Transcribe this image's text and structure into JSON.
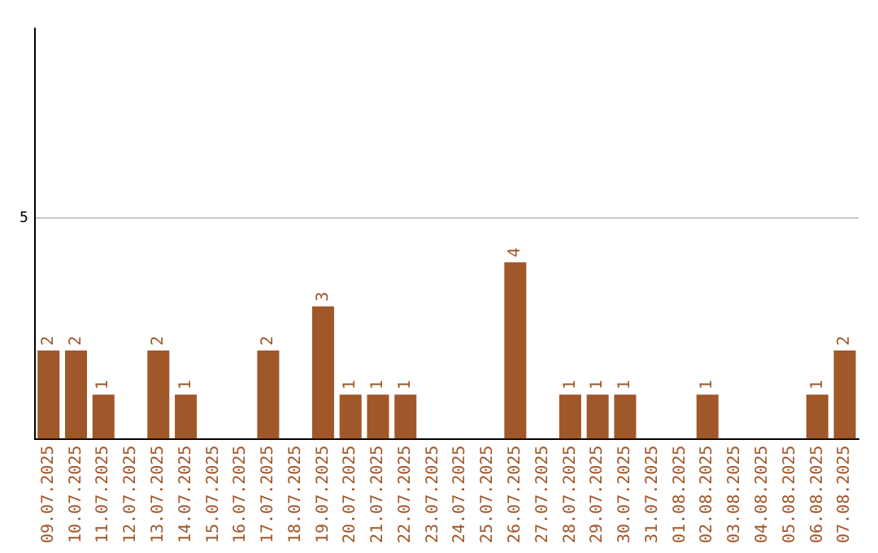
{
  "chart_data": {
    "type": "bar",
    "categories": [
      "09.07.2025",
      "10.07.2025",
      "11.07.2025",
      "12.07.2025",
      "13.07.2025",
      "14.07.2025",
      "15.07.2025",
      "16.07.2025",
      "17.07.2025",
      "18.07.2025",
      "19.07.2025",
      "20.07.2025",
      "21.07.2025",
      "22.07.2025",
      "23.07.2025",
      "24.07.2025",
      "25.07.2025",
      "26.07.2025",
      "27.07.2025",
      "28.07.2025",
      "29.07.2025",
      "30.07.2025",
      "31.07.2025",
      "01.08.2025",
      "02.08.2025",
      "03.08.2025",
      "04.08.2025",
      "05.08.2025",
      "06.08.2025",
      "07.08.2025"
    ],
    "values": [
      2,
      2,
      1,
      0,
      2,
      1,
      0,
      0,
      2,
      0,
      3,
      1,
      1,
      1,
      0,
      0,
      0,
      4,
      0,
      1,
      1,
      1,
      0,
      0,
      1,
      0,
      0,
      0,
      1,
      2
    ],
    "value_labels": [
      "2",
      "2",
      "1",
      null,
      "2",
      "1",
      null,
      null,
      "2",
      null,
      "3",
      "1",
      "1",
      "1",
      null,
      null,
      null,
      "4",
      null,
      "1",
      "1",
      "1",
      null,
      null,
      "1",
      null,
      null,
      null,
      "1",
      "2"
    ],
    "color": "#a0572a",
    "ylim": [
      0,
      9.3
    ],
    "yticks": [
      5
    ],
    "grid": "y",
    "legend": false
  }
}
